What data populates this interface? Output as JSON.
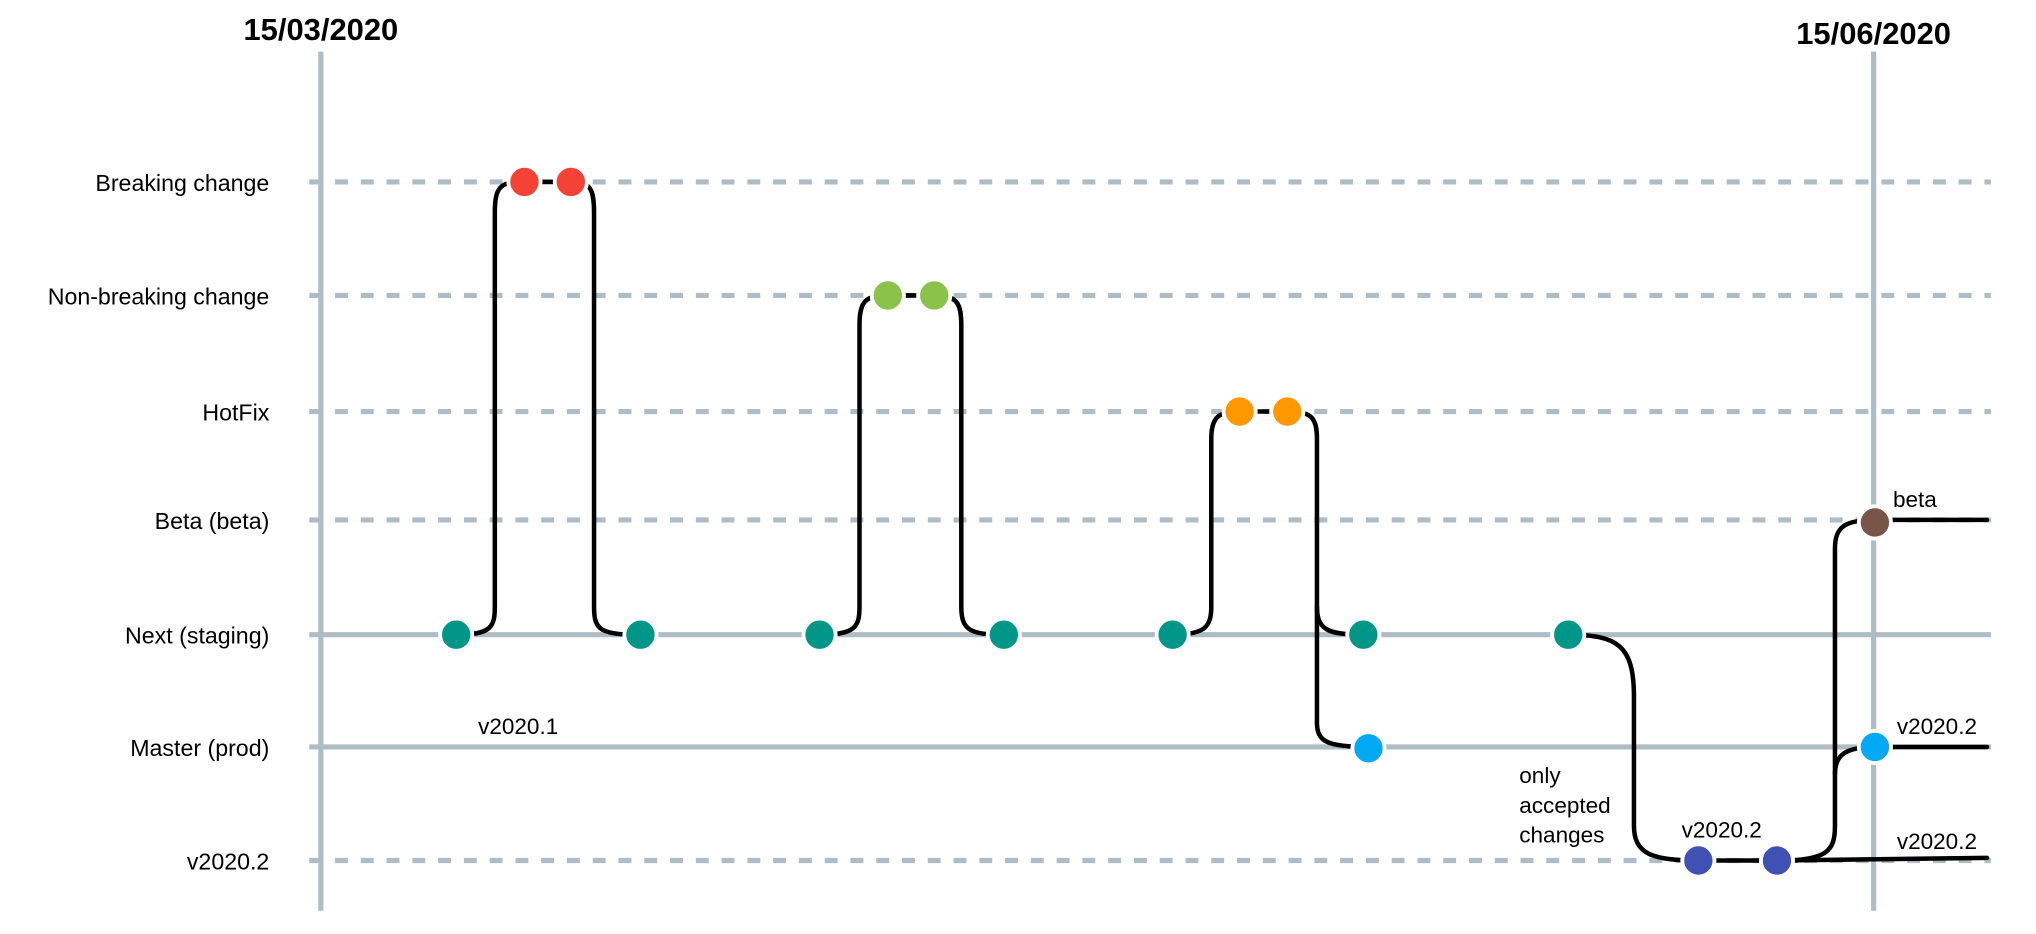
{
  "dates": {
    "start": "15/03/2020",
    "end": "15/06/2020"
  },
  "lanes": [
    {
      "id": "breaking",
      "label": "Breaking change",
      "style": "dashed"
    },
    {
      "id": "nonbreaking",
      "label": "Non-breaking change",
      "style": "dashed"
    },
    {
      "id": "hotfix",
      "label": "HotFix",
      "style": "dashed"
    },
    {
      "id": "beta",
      "label": "Beta (beta)",
      "style": "dashed"
    },
    {
      "id": "next",
      "label": "Next (staging)",
      "style": "solid"
    },
    {
      "id": "master",
      "label": "Master (prod)",
      "style": "solid"
    },
    {
      "id": "release",
      "label": "v2020.2",
      "style": "dashed"
    }
  ],
  "colors": {
    "breaking": "#f44336",
    "nonbreaking": "#8bc34a",
    "hotfix": "#ff9800",
    "beta": "#795548",
    "next": "#009688",
    "master": "#03a9f4",
    "release": "#3f51b5",
    "lane_line": "#aebcc6"
  },
  "annotations": {
    "master_version": "v2020.1",
    "release_note_line1": "only",
    "release_note_line2": "accepted",
    "release_note_line3": "changes",
    "release_tag": "v2020.2",
    "beta_tag": "beta",
    "master_end_tag": "v2020.2",
    "release_end_tag": "v2020.2"
  }
}
